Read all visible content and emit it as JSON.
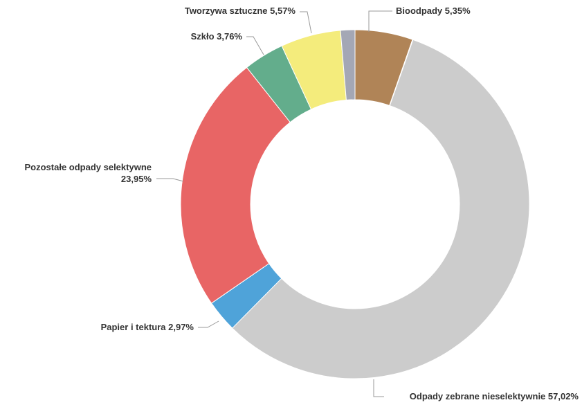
{
  "chart_data": {
    "type": "pie",
    "variant": "donut",
    "start_angle_deg": 0,
    "direction": "clockwise",
    "legend": "none",
    "slices": [
      {
        "name": "Bioodpady",
        "value": 5.35,
        "label": "Bioodpady 5,35%",
        "color": "#b08457"
      },
      {
        "name": "",
        "value": 0.05,
        "label": "",
        "color": "#e8a23a"
      },
      {
        "name": "Odpady zebrane nieselektywnie",
        "value": 57.02,
        "label": "Odpady zebrane nieselektywnie 57,02%",
        "color": "#cccccc"
      },
      {
        "name": "Papier i tektura",
        "value": 2.97,
        "label": "Papier i tektura 2,97%",
        "color": "#4fa3d9"
      },
      {
        "name": "Pozostałe odpady selektywne",
        "value": 23.95,
        "label_lines": [
          "Pozostałe odpady selektywne",
          "23,95%"
        ],
        "color": "#e86565"
      },
      {
        "name": "Szkło",
        "value": 3.76,
        "label": "Szkło 3,76%",
        "color": "#63ad8c"
      },
      {
        "name": "Tworzywa sztuczne",
        "value": 5.57,
        "label": "Tworzywa sztuczne 5,57%",
        "color": "#f4ec7c"
      },
      {
        "name": "",
        "value": 1.33,
        "label": "",
        "color": "#a4a7b5"
      }
    ]
  }
}
